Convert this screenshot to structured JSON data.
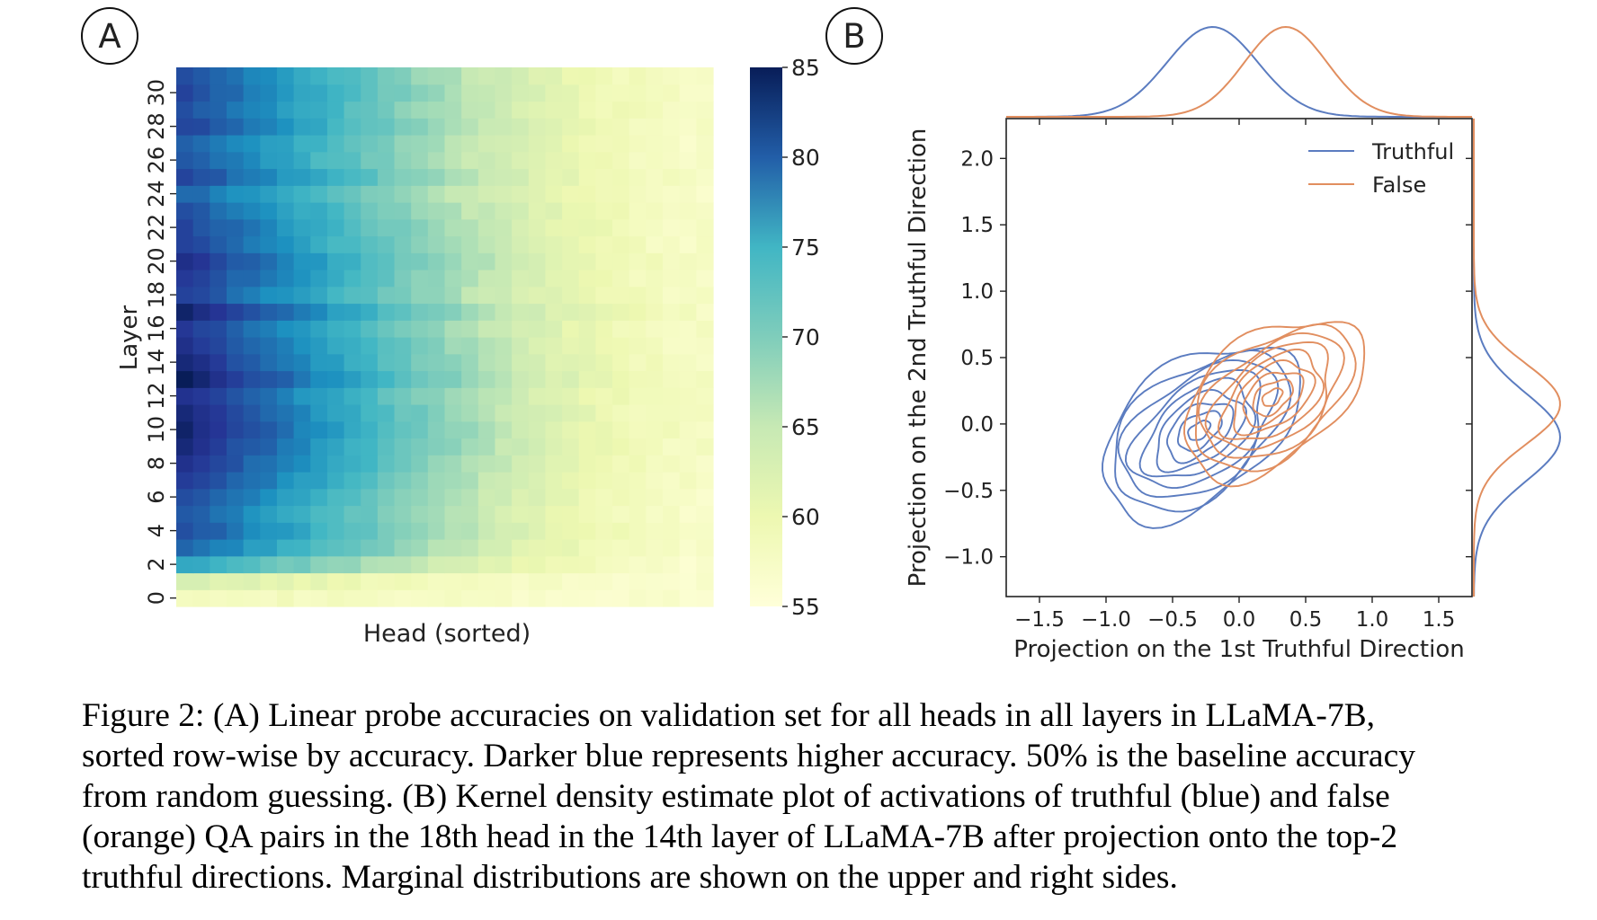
{
  "panels": {
    "a": {
      "label": "A"
    },
    "b": {
      "label": "B"
    }
  },
  "chart_data": [
    {
      "type": "heatmap",
      "title": "",
      "xlabel": "Head (sorted)",
      "ylabel": "Layer",
      "y_ticks": [
        "0",
        "2",
        "4",
        "6",
        "8",
        "10",
        "12",
        "14",
        "16",
        "18",
        "20",
        "22",
        "24",
        "26",
        "28",
        "30"
      ],
      "rows": 32,
      "cols": 32,
      "colorbar": {
        "ticks": [
          "55",
          "60",
          "65",
          "70",
          "75",
          "80",
          "85"
        ],
        "min": 55,
        "max": 85
      },
      "row_peak_accuracy": [
        58,
        61,
        72,
        77,
        79,
        78,
        79,
        81,
        82,
        83,
        84,
        83,
        82,
        85,
        83,
        82,
        81,
        84,
        80,
        81,
        82,
        80,
        80,
        79,
        77,
        80,
        78,
        78,
        80,
        79,
        80,
        79
      ]
    },
    {
      "type": "contour",
      "xlabel": "Projection on the 1st Truthful Direction",
      "ylabel": "Projection on the 2nd Truthful Direction",
      "x_ticks": [
        "−1.5",
        "−1.0",
        "−0.5",
        "0.0",
        "0.5",
        "1.0",
        "1.5"
      ],
      "y_ticks": [
        "−1.0",
        "−0.5",
        "0.0",
        "0.5",
        "1.0",
        "1.5",
        "2.0"
      ],
      "xlim": [
        -1.75,
        1.75
      ],
      "ylim": [
        -1.3,
        2.3
      ],
      "legend": [
        "Truthful",
        "False"
      ],
      "series": [
        {
          "name": "Truthful",
          "color": "#5b7cc0",
          "center": [
            -0.3,
            -0.05
          ],
          "spread": [
            0.55,
            0.6
          ],
          "tilt_deg": 38
        },
        {
          "name": "False",
          "color": "#e18e5f",
          "center": [
            0.25,
            0.2
          ],
          "spread": [
            0.5,
            0.55
          ],
          "tilt_deg": 38
        }
      ]
    }
  ],
  "caption": {
    "lines": [
      "Figure 2: (A) Linear probe accuracies on validation set for all heads in all layers in LLaMA-7B,",
      "sorted row-wise by accuracy. Darker blue represents higher accuracy. 50% is the baseline accuracy",
      "from random guessing. (B) Kernel density estimate plot of activations of truthful (blue) and false",
      "(orange) QA pairs in the 18th head in the 14th layer of LLaMA-7B after projection onto the top-2",
      "truthful directions. Marginal distributions are shown on the upper and right sides."
    ]
  }
}
